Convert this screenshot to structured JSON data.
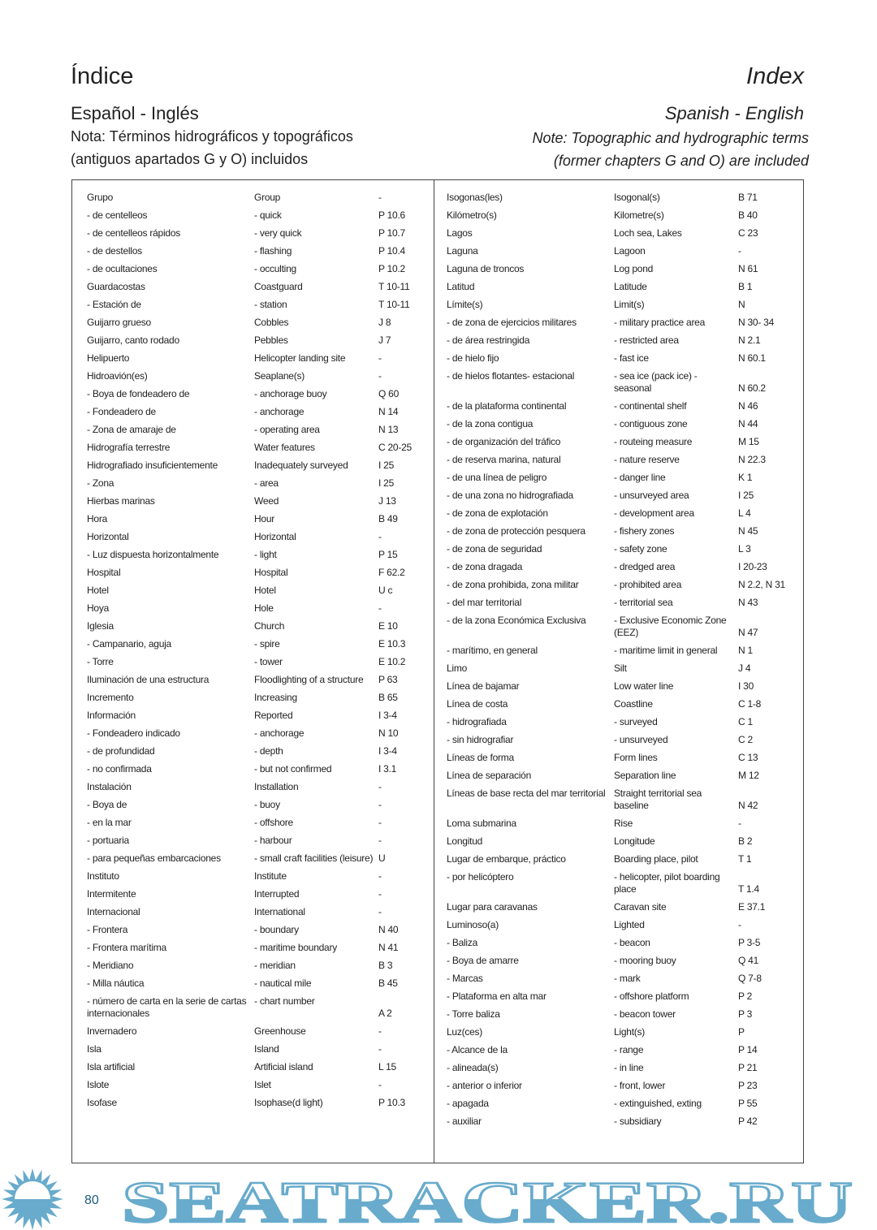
{
  "header": {
    "title_es": "Índice",
    "title_en": "Index",
    "subtitle_es": "Español - Inglés",
    "subtitle_en": "Spanish - English",
    "note_es_1": "Nota: Términos hidrográficos y topográficos",
    "note_es_2": "(antiguos apartados G y O) incluidos",
    "note_en_1": "Note: Topographic and hydrographic terms",
    "note_en_2": "(former chapters G and O) are included"
  },
  "left_rows": [
    [
      "Grupo",
      "Group",
      "-"
    ],
    [
      "- de centelleos",
      "- quick",
      "P 10.6"
    ],
    [
      "- de centelleos rápidos",
      "- very quick",
      "P 10.7"
    ],
    [
      "- de destellos",
      "- flashing",
      "P 10.4"
    ],
    [
      "- de ocultaciones",
      "- occulting",
      "P 10.2"
    ],
    [
      "Guardacostas",
      "Coastguard",
      "T 10-11"
    ],
    [
      "- Estación de",
      "- station",
      "T 10-11"
    ],
    [
      "Guijarro grueso",
      "Cobbles",
      "J 8"
    ],
    [
      "Guijarro, canto rodado",
      "Pebbles",
      "J 7"
    ],
    [
      "Helipuerto",
      "Helicopter landing site",
      "-"
    ],
    [
      "Hidroavión(es)",
      "Seaplane(s)",
      "-"
    ],
    [
      "- Boya de fondeadero de",
      "- anchorage buoy",
      "Q 60"
    ],
    [
      "- Fondeadero de",
      "- anchorage",
      "N 14"
    ],
    [
      "- Zona de amaraje de",
      "- operating area",
      "N 13"
    ],
    [
      "Hidrografía terrestre",
      "Water features",
      "C 20-25"
    ],
    [
      "Hidrografiado insuficientemente",
      "Inadequately surveyed",
      "I 25"
    ],
    [
      "- Zona",
      "- area",
      "I 25"
    ],
    [
      "Hierbas marinas",
      "Weed",
      "J 13"
    ],
    [
      "Hora",
      "Hour",
      "B 49"
    ],
    [
      "Horizontal",
      "Horizontal",
      "-"
    ],
    [
      "- Luz dispuesta horizontalmente",
      "- light",
      "P 15"
    ],
    [
      "Hospital",
      "Hospital",
      "F 62.2"
    ],
    [
      "Hotel",
      "Hotel",
      "U c"
    ],
    [
      "Hoya",
      "Hole",
      "-"
    ],
    [
      "Iglesia",
      "Church",
      "E 10"
    ],
    [
      "- Campanario, aguja",
      "- spire",
      "E 10.3"
    ],
    [
      "- Torre",
      "- tower",
      "E 10.2"
    ],
    [
      "Iluminación de una estructura",
      "Floodlighting of a structure",
      "P 63"
    ],
    [
      "Incremento",
      "Increasing",
      "B 65"
    ],
    [
      "Información",
      "Reported",
      "I 3-4"
    ],
    [
      "- Fondeadero indicado",
      "- anchorage",
      "N 10"
    ],
    [
      "- de profundidad",
      "- depth",
      "I 3-4"
    ],
    [
      "- no confirmada",
      "- but not confirmed",
      "I 3.1"
    ],
    [
      "Instalación",
      "Installation",
      "-"
    ],
    [
      "- Boya de",
      "- buoy",
      "-"
    ],
    [
      "- en la mar",
      "- offshore",
      "-"
    ],
    [
      "- portuaria",
      "- harbour",
      "-"
    ],
    [
      "- para pequeñas embarcaciones",
      "- small craft facilities (leisure)",
      "U"
    ],
    [
      "Instituto",
      "Institute",
      "-"
    ],
    [
      "Intermitente",
      "Interrupted",
      "-"
    ],
    [
      "Internacional",
      "International",
      "-"
    ],
    [
      "- Frontera",
      "- boundary",
      "N 40"
    ],
    [
      "- Frontera marítima",
      "- maritime boundary",
      "N 41"
    ],
    [
      "- Meridiano",
      "- meridian",
      "B 3"
    ],
    [
      "- Milla náutica",
      "- nautical mile",
      "B 45"
    ],
    [
      "- número de carta en la serie de cartas internacionales",
      "- chart number",
      "A 2"
    ],
    [
      "Invernadero",
      "Greenhouse",
      "-"
    ],
    [
      "Isla",
      "Island",
      "-"
    ],
    [
      "Isla artificial",
      "Artificial island",
      "L 15"
    ],
    [
      "Islote",
      "Islet",
      "-"
    ],
    [
      "Isofase",
      "Isophase(d light)",
      "P 10.3"
    ]
  ],
  "right_rows": [
    [
      "Isogonas(les)",
      "Isogonal(s)",
      "B 71"
    ],
    [
      "Kilómetro(s)",
      "Kilometre(s)",
      "B 40"
    ],
    [
      "Lagos",
      "Loch sea, Lakes",
      "C 23"
    ],
    [
      "Laguna",
      "Lagoon",
      "-"
    ],
    [
      "Laguna de troncos",
      "Log pond",
      "N 61"
    ],
    [
      "Latitud",
      "Latitude",
      "B 1"
    ],
    [
      "Límite(s)",
      "Limit(s)",
      "N"
    ],
    [
      "- de zona de ejercicios militares",
      "- military practice area",
      "N 30- 34"
    ],
    [
      "- de área restringida",
      "- restricted area",
      "N 2.1"
    ],
    [
      "- de hielo fijo",
      "- fast ice",
      "N 60.1"
    ],
    [
      "- de hielos flotantes- estacional",
      "- sea ice (pack ice) -  seasonal",
      "N 60.2"
    ],
    [
      "- de la plataforma continental",
      "- continental shelf",
      "N 46"
    ],
    [
      "- de la zona contigua",
      "- contiguous zone",
      "N 44"
    ],
    [
      "- de organización del tráfico",
      "- routeing measure",
      "M 15"
    ],
    [
      "- de reserva marina, natural",
      "- nature reserve",
      "N 22.3"
    ],
    [
      "- de una línea de peligro",
      "- danger line",
      "K 1"
    ],
    [
      "- de una zona no hidrografiada",
      "- unsurveyed area",
      "I 25"
    ],
    [
      "- de zona de explotación",
      "- development area",
      "L 4"
    ],
    [
      "- de zona de protección pesquera",
      "- fishery zones",
      "N 45"
    ],
    [
      "- de zona de seguridad",
      "- safety zone",
      "L 3"
    ],
    [
      "- de zona dragada",
      "- dredged area",
      "I 20-23"
    ],
    [
      "- de zona prohibida, zona militar",
      "- prohibited area",
      "N 2.2, N 31"
    ],
    [
      "- del mar territorial",
      "- territorial sea",
      "N 43"
    ],
    [
      "- de la zona Económica Exclusiva",
      "- Exclusive Economic Zone (EEZ)",
      "N 47"
    ],
    [
      "- marítimo, en general",
      "- maritime limit in general",
      "N 1"
    ],
    [
      "Limo",
      "Silt",
      "J 4"
    ],
    [
      "Línea de bajamar",
      "Low water line",
      "I 30"
    ],
    [
      "Línea de costa",
      "Coastline",
      "C 1-8"
    ],
    [
      "- hidrografiada",
      "- surveyed",
      "C 1"
    ],
    [
      "- sin hidrografiar",
      "- unsurveyed",
      "C 2"
    ],
    [
      "Líneas de forma",
      "Form lines",
      "C 13"
    ],
    [
      "Línea de separación",
      "Separation line",
      "M 12"
    ],
    [
      "Líneas de base recta del mar territorial",
      "Straight territorial sea baseline",
      "N 42"
    ],
    [
      "Loma submarina",
      "Rise",
      "-"
    ],
    [
      "Longitud",
      "Longitude",
      "B 2"
    ],
    [
      "Lugar de embarque, práctico",
      "Boarding place, pilot",
      "T 1"
    ],
    [
      "- por helicóptero",
      "- helicopter, pilot boarding place",
      "T 1.4"
    ],
    [
      "Lugar para caravanas",
      "Caravan site",
      "E 37.1"
    ],
    [
      "Luminoso(a)",
      "Lighted",
      "-"
    ],
    [
      "- Baliza",
      "- beacon",
      "P 3-5"
    ],
    [
      "- Boya de amarre",
      "- mooring buoy",
      "Q 41"
    ],
    [
      "- Marcas",
      "- mark",
      "Q 7-8"
    ],
    [
      "- Plataforma en alta mar",
      "- offshore platform",
      "P 2"
    ],
    [
      "- Torre baliza",
      "- beacon tower",
      "P 3"
    ],
    [
      "Luz(ces)",
      "Light(s)",
      "P"
    ],
    [
      "- Alcance de la",
      "- range",
      "P 14"
    ],
    [
      "- alineada(s)",
      "- in line",
      "P 21"
    ],
    [
      "- anterior o inferior",
      "- front, lower",
      "P 23"
    ],
    [
      "- apagada",
      "- extinguished, exting",
      "P 55"
    ],
    [
      "- auxiliar",
      "- subsidiary",
      "P 42"
    ]
  ],
  "page_number": "80",
  "watermark": {
    "text": "SEATRACKER.RU",
    "color": "#68abcc",
    "icon": "sun-icon"
  }
}
